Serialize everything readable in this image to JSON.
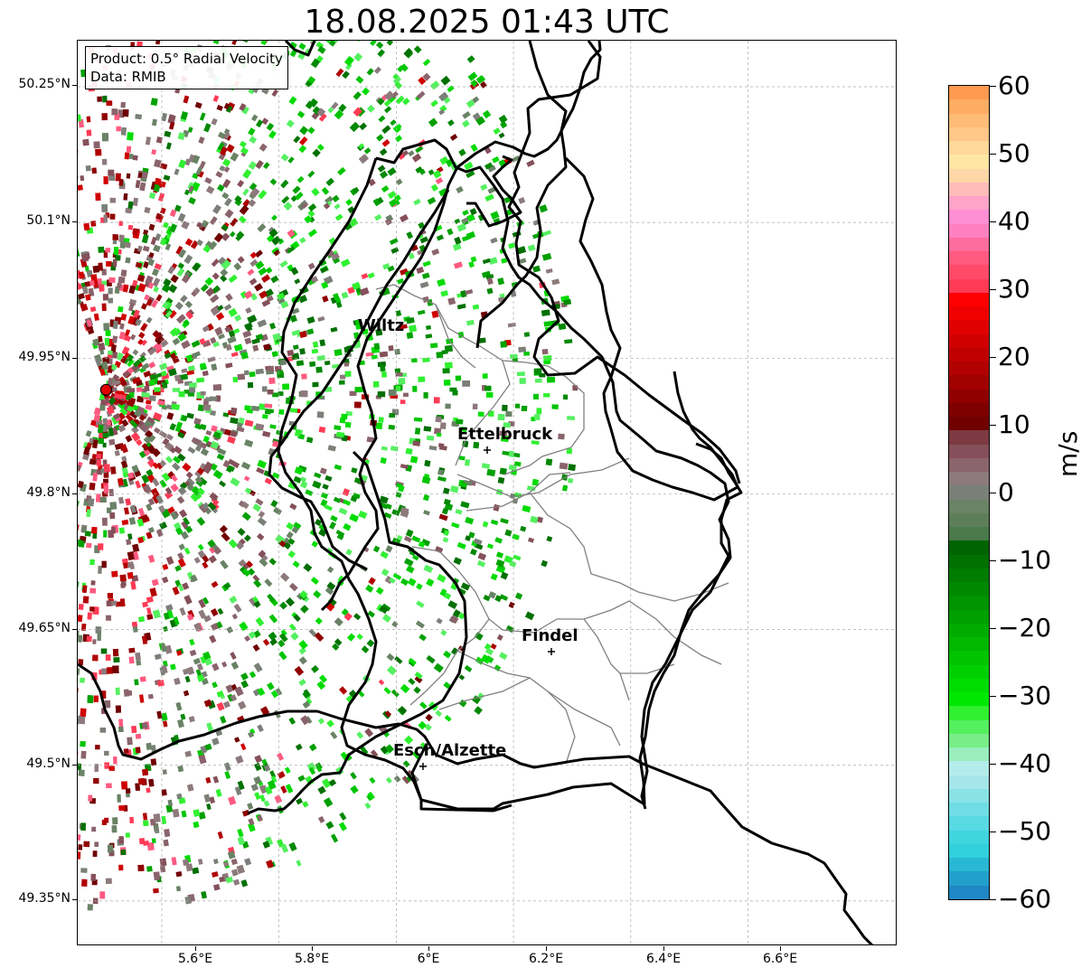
{
  "title": "18.08.2025 01:43 UTC",
  "info": {
    "product": "Product: 0.5° Radial Velocity",
    "source": "Data: RMIB"
  },
  "axes": {
    "lat_ticks": [
      "50.25°N",
      "50.1°N",
      "49.95°N",
      "49.8°N",
      "49.65°N",
      "49.5°N",
      "49.35°N"
    ],
    "lon_ticks": [
      "5.6°E",
      "5.8°E",
      "6°E",
      "6.2°E",
      "6.4°E",
      "6.6°E"
    ],
    "grid": true
  },
  "cities": [
    {
      "name": "Wiltz",
      "marker": false
    },
    {
      "name": "Ettelbruck",
      "marker": true
    },
    {
      "name": "Findel",
      "marker": true
    },
    {
      "name": "Esch/Alzette",
      "marker": true
    }
  ],
  "radar_site": {
    "color": "#e00000",
    "lon": 5.505,
    "lat": 49.915
  },
  "colorbar": {
    "label": "m/s",
    "min": -60,
    "max": 60,
    "ticks": [
      "60",
      "50",
      "40",
      "30",
      "20",
      "10",
      "0",
      "−10",
      "−20",
      "−30",
      "−40",
      "−50",
      "−60"
    ],
    "colors_top_to_bottom": [
      "#ff9a50",
      "#ffac63",
      "#ffbc77",
      "#ffc88a",
      "#ffd89a",
      "#ffe6a5",
      "#ffd6a8",
      "#ffbcb8",
      "#ffa4c8",
      "#ff8ed4",
      "#ff80c0",
      "#ff6c9e",
      "#ff5a80",
      "#ff4a68",
      "#ff3a55",
      "#ff0000",
      "#f00000",
      "#e00000",
      "#d00000",
      "#c00000",
      "#b00000",
      "#a00000",
      "#900000",
      "#800000",
      "#700000",
      "#7d3a42",
      "#85505a",
      "#8a646c",
      "#8d7a7c",
      "#7a8078",
      "#6a8266",
      "#5e7e5a",
      "#4a7a4a",
      "#006400",
      "#007000",
      "#007c00",
      "#008800",
      "#009400",
      "#00a000",
      "#00ac00",
      "#00b800",
      "#00c400",
      "#00d000",
      "#00dc00",
      "#00e800",
      "#30f030",
      "#55f060",
      "#77ee88",
      "#99eebb",
      "#b4ecec",
      "#a4e6ea",
      "#8ae2e6",
      "#70dde4",
      "#58dae2",
      "#40d6e0",
      "#30d0dc",
      "#28b8d4",
      "#22a0cc",
      "#1f88c4"
    ]
  }
}
